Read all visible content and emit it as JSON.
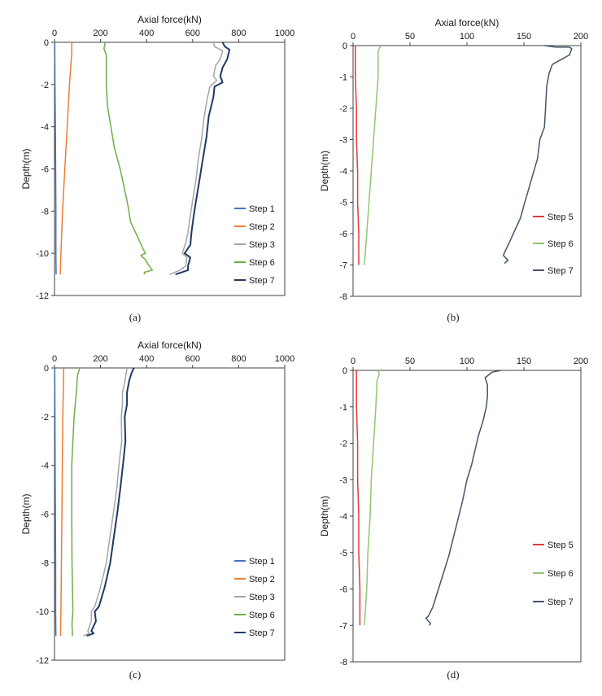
{
  "chart_data": [
    {
      "type": "line",
      "caption": "(a)",
      "xlabel": "Axial force(kN)",
      "ylabel": "Depth(m)",
      "xlim": [
        0,
        1000
      ],
      "ylim": [
        -12,
        0
      ],
      "xticks": [
        "0",
        "200",
        "400",
        "600",
        "800",
        "1000"
      ],
      "yticks": [
        "0",
        "-2",
        "-4",
        "-6",
        "-8",
        "-10",
        "-12"
      ],
      "series": [
        {
          "name": "Step 1",
          "color": "#4472c4",
          "points": [
            [
              1,
              0
            ],
            [
              2,
              -2
            ],
            [
              4,
              -4
            ],
            [
              5,
              -6
            ],
            [
              6,
              -8
            ],
            [
              6,
              -10
            ],
            [
              7,
              -11
            ]
          ]
        },
        {
          "name": "Step 2",
          "color": "#ed7d31",
          "points": [
            [
              75,
              0
            ],
            [
              75,
              -0.5
            ],
            [
              65,
              -2
            ],
            [
              55,
              -4
            ],
            [
              45,
              -6
            ],
            [
              35,
              -8
            ],
            [
              28,
              -10
            ],
            [
              25,
              -11
            ]
          ]
        },
        {
          "name": "Step 3",
          "color": "#a5a5a5",
          "points": [
            [
              690,
              0
            ],
            [
              695,
              -0.2
            ],
            [
              730,
              -0.4
            ],
            [
              720,
              -0.8
            ],
            [
              700,
              -1.1
            ],
            [
              690,
              -1.6
            ],
            [
              705,
              -1.8
            ],
            [
              675,
              -2.1
            ],
            [
              665,
              -2.6
            ],
            [
              650,
              -3.5
            ],
            [
              640,
              -4.5
            ],
            [
              625,
              -5.5
            ],
            [
              615,
              -6.5
            ],
            [
              600,
              -7.5
            ],
            [
              590,
              -8.2
            ],
            [
              580,
              -9
            ],
            [
              570,
              -9.5
            ],
            [
              555,
              -10
            ],
            [
              575,
              -10.2
            ],
            [
              570,
              -10.6
            ],
            [
              545,
              -10.8
            ],
            [
              500,
              -11
            ]
          ]
        },
        {
          "name": "Step 6",
          "color": "#70ad47",
          "points": [
            [
              220,
              0
            ],
            [
              215,
              -0.3
            ],
            [
              225,
              -0.6
            ],
            [
              225,
              -2
            ],
            [
              230,
              -3
            ],
            [
              245,
              -4
            ],
            [
              260,
              -5
            ],
            [
              285,
              -6
            ],
            [
              305,
              -7
            ],
            [
              320,
              -7.8
            ],
            [
              330,
              -8.5
            ],
            [
              360,
              -9.2
            ],
            [
              385,
              -9.8
            ],
            [
              395,
              -10
            ],
            [
              375,
              -10.1
            ],
            [
              395,
              -10.3
            ],
            [
              405,
              -10.5
            ],
            [
              425,
              -10.8
            ],
            [
              390,
              -10.9
            ],
            [
              390,
              -11
            ]
          ]
        },
        {
          "name": "Step 7",
          "color": "#203864",
          "points": [
            [
              730,
              0
            ],
            [
              740,
              -0.2
            ],
            [
              760,
              -0.35
            ],
            [
              750,
              -0.8
            ],
            [
              730,
              -1.2
            ],
            [
              720,
              -1.6
            ],
            [
              730,
              -1.9
            ],
            [
              695,
              -2.1
            ],
            [
              690,
              -2.6
            ],
            [
              670,
              -3.5
            ],
            [
              660,
              -4.5
            ],
            [
              645,
              -5.5
            ],
            [
              630,
              -6.5
            ],
            [
              615,
              -7.5
            ],
            [
              605,
              -8.2
            ],
            [
              595,
              -9
            ],
            [
              590,
              -9.6
            ],
            [
              565,
              -10
            ],
            [
              590,
              -10.2
            ],
            [
              580,
              -10.6
            ],
            [
              580,
              -10.8
            ],
            [
              525,
              -11
            ]
          ]
        }
      ]
    },
    {
      "type": "line",
      "caption": "(b)",
      "xlabel": "Axial force(kN)",
      "ylabel": "Depth(m)",
      "xlim": [
        0,
        200
      ],
      "ylim": [
        -8,
        0
      ],
      "xticks": [
        "0",
        "50",
        "100",
        "150",
        "200"
      ],
      "yticks": [
        "0",
        "-1",
        "-2",
        "-3",
        "-4",
        "-5",
        "-6",
        "-7",
        "-8"
      ],
      "series": [
        {
          "name": "Step 5",
          "color": "#e03a3a",
          "points": [
            [
              2,
              0
            ],
            [
              2,
              -1
            ],
            [
              3,
              -2
            ],
            [
              3,
              -3
            ],
            [
              4,
              -4
            ],
            [
              4,
              -5
            ],
            [
              5,
              -6
            ],
            [
              5,
              -7
            ]
          ]
        },
        {
          "name": "Step 6",
          "color": "#92c56e",
          "points": [
            [
              24,
              0
            ],
            [
              22,
              -0.2
            ],
            [
              22,
              -1
            ],
            [
              20,
              -2
            ],
            [
              18,
              -3
            ],
            [
              16,
              -4
            ],
            [
              14,
              -5
            ],
            [
              12,
              -6
            ],
            [
              10,
              -7
            ]
          ]
        },
        {
          "name": "Step 7",
          "color": "#44546a",
          "points": [
            [
              168,
              0
            ],
            [
              178,
              -0.05
            ],
            [
              190,
              -0.05
            ],
            [
              192,
              -0.1
            ],
            [
              190,
              -0.3
            ],
            [
              180,
              -0.5
            ],
            [
              175,
              -0.6
            ],
            [
              172,
              -0.9
            ],
            [
              170,
              -1.3
            ],
            [
              169,
              -2
            ],
            [
              168,
              -2.6
            ],
            [
              164,
              -3
            ],
            [
              162,
              -3.6
            ],
            [
              158,
              -4.1
            ],
            [
              154,
              -4.6
            ],
            [
              150,
              -5.1
            ],
            [
              147,
              -5.5
            ],
            [
              142,
              -5.9
            ],
            [
              137,
              -6.3
            ],
            [
              133,
              -6.6
            ],
            [
              132,
              -6.7
            ],
            [
              136,
              -6.85
            ],
            [
              133,
              -6.95
            ]
          ]
        }
      ]
    },
    {
      "type": "line",
      "caption": "(c)",
      "xlabel": "Axial force(kN)",
      "ylabel": "Depth(m)",
      "xlim": [
        0,
        1000
      ],
      "ylim": [
        -12,
        0
      ],
      "xticks": [
        "0",
        "200",
        "400",
        "600",
        "800",
        "1000"
      ],
      "yticks": [
        "0",
        "-2",
        "-4",
        "-6",
        "-8",
        "-10",
        "-12"
      ],
      "series": [
        {
          "name": "Step 1",
          "color": "#4472c4",
          "points": [
            [
              1,
              0
            ],
            [
              2,
              -2
            ],
            [
              3,
              -4
            ],
            [
              4,
              -6
            ],
            [
              5,
              -8
            ],
            [
              5,
              -10
            ],
            [
              6,
              -11
            ]
          ]
        },
        {
          "name": "Step 2",
          "color": "#ed7d31",
          "points": [
            [
              40,
              0
            ],
            [
              38,
              -1
            ],
            [
              36,
              -2
            ],
            [
              34,
              -4
            ],
            [
              32,
              -6
            ],
            [
              30,
              -8
            ],
            [
              28,
              -10
            ],
            [
              26,
              -11
            ]
          ]
        },
        {
          "name": "Step 3",
          "color": "#a5a5a5",
          "points": [
            [
              315,
              0
            ],
            [
              310,
              -0.3
            ],
            [
              305,
              -0.6
            ],
            [
              295,
              -1
            ],
            [
              295,
              -1.5
            ],
            [
              290,
              -2
            ],
            [
              292,
              -3
            ],
            [
              280,
              -4
            ],
            [
              270,
              -5
            ],
            [
              255,
              -6
            ],
            [
              240,
              -7
            ],
            [
              225,
              -8
            ],
            [
              200,
              -9
            ],
            [
              175,
              -9.8
            ],
            [
              160,
              -10
            ],
            [
              160,
              -10.4
            ],
            [
              145,
              -10.8
            ],
            [
              150,
              -10.9
            ],
            [
              125,
              -11
            ]
          ]
        },
        {
          "name": "Step 6",
          "color": "#70ad47",
          "points": [
            [
              110,
              0
            ],
            [
              100,
              -0.3
            ],
            [
              95,
              -1
            ],
            [
              85,
              -2
            ],
            [
              80,
              -3
            ],
            [
              75,
              -4
            ],
            [
              75,
              -5
            ],
            [
              75,
              -6
            ],
            [
              76,
              -8
            ],
            [
              78,
              -9
            ],
            [
              80,
              -10
            ],
            [
              76,
              -10.5
            ],
            [
              78,
              -11
            ]
          ]
        },
        {
          "name": "Step 7",
          "color": "#203864",
          "points": [
            [
              345,
              0
            ],
            [
              335,
              -0.2
            ],
            [
              325,
              -0.5
            ],
            [
              315,
              -1
            ],
            [
              315,
              -1.5
            ],
            [
              305,
              -2
            ],
            [
              308,
              -3
            ],
            [
              297,
              -4
            ],
            [
              285,
              -5
            ],
            [
              272,
              -6
            ],
            [
              257,
              -7
            ],
            [
              242,
              -8
            ],
            [
              218,
              -9
            ],
            [
              193,
              -9.8
            ],
            [
              175,
              -10
            ],
            [
              180,
              -10.4
            ],
            [
              160,
              -10.8
            ],
            [
              170,
              -10.9
            ],
            [
              140,
              -11
            ]
          ]
        }
      ]
    },
    {
      "type": "line",
      "caption": "(d)",
      "xlabel": "",
      "ylabel": "Depth(m)",
      "xlim": [
        0,
        200
      ],
      "ylim": [
        -8,
        0
      ],
      "xticks": [
        "0",
        "50",
        "100",
        "150",
        "200"
      ],
      "yticks": [
        "0",
        "-1",
        "-2",
        "-3",
        "-4",
        "-5",
        "-6",
        "-7",
        "-8"
      ],
      "series": [
        {
          "name": "Step 5",
          "color": "#e03a3a",
          "points": [
            [
              3,
              0
            ],
            [
              3,
              -1
            ],
            [
              4,
              -2
            ],
            [
              4,
              -3
            ],
            [
              5,
              -4
            ],
            [
              5,
              -5
            ],
            [
              6,
              -6
            ],
            [
              6,
              -7
            ]
          ]
        },
        {
          "name": "Step 6",
          "color": "#92c56e",
          "points": [
            [
              22,
              0
            ],
            [
              23,
              -0.1
            ],
            [
              21,
              -0.3
            ],
            [
              20,
              -1
            ],
            [
              18,
              -2
            ],
            [
              16,
              -3
            ],
            [
              15,
              -4
            ],
            [
              13,
              -5
            ],
            [
              12,
              -6
            ],
            [
              10,
              -7
            ]
          ]
        },
        {
          "name": "Step 7",
          "color": "#44546a",
          "points": [
            [
              130,
              0
            ],
            [
              122,
              -0.05
            ],
            [
              120,
              -0.1
            ],
            [
              116,
              -0.2
            ],
            [
              118,
              -0.4
            ],
            [
              118,
              -0.7
            ],
            [
              117,
              -1
            ],
            [
              114,
              -1.4
            ],
            [
              110,
              -1.8
            ],
            [
              107,
              -2.2
            ],
            [
              104,
              -2.6
            ],
            [
              100,
              -3
            ],
            [
              96,
              -3.6
            ],
            [
              92,
              -4.1
            ],
            [
              88,
              -4.6
            ],
            [
              84,
              -5.1
            ],
            [
              79,
              -5.6
            ],
            [
              74,
              -6.1
            ],
            [
              70,
              -6.5
            ],
            [
              66,
              -6.75
            ],
            [
              64,
              -6.8
            ],
            [
              68,
              -6.95
            ],
            [
              67,
              -7
            ]
          ]
        }
      ]
    }
  ]
}
